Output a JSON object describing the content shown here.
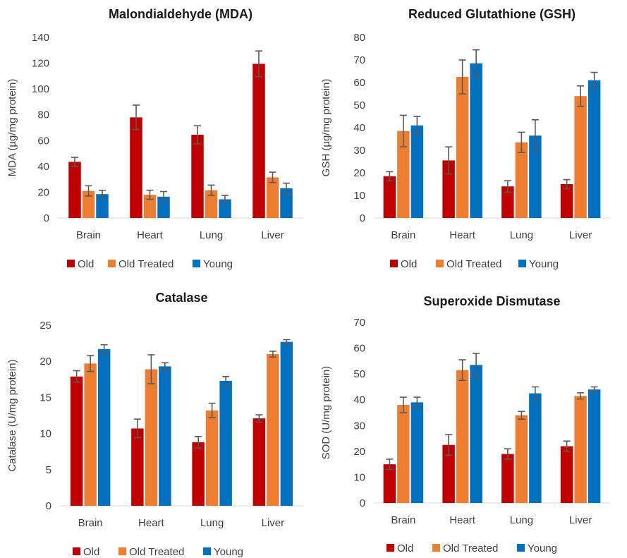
{
  "chart_data": [
    {
      "type": "bar",
      "title": "Malondialdehyde (MDA)",
      "ylabel": "MDA (µg/mg protein)",
      "ylim": [
        0,
        140
      ],
      "yticks": [
        0,
        20,
        40,
        60,
        80,
        100,
        120,
        140
      ],
      "grid": false,
      "legend_position": "bottom",
      "error_bars": true,
      "categories": [
        "Brain",
        "Heart",
        "Lung",
        "Liver"
      ],
      "series": [
        {
          "name": "Old",
          "color": "#C00000",
          "values": [
            43.5,
            78,
            64.5,
            119.5
          ],
          "errors": [
            3.5,
            9.5,
            7,
            10
          ]
        },
        {
          "name": "Old Treated",
          "color": "#ED7D31",
          "values": [
            21,
            18,
            21.5,
            31.5
          ],
          "errors": [
            4,
            3.5,
            4,
            4
          ]
        },
        {
          "name": "Young",
          "color": "#0070C0",
          "values": [
            18.5,
            16.5,
            14.5,
            23
          ],
          "errors": [
            3,
            4,
            3,
            4
          ]
        }
      ]
    },
    {
      "type": "bar",
      "title": "Reduced Glutathione (GSH)",
      "ylabel": "GSH (µg/mg protein)",
      "ylim": [
        0,
        80
      ],
      "yticks": [
        0,
        10,
        20,
        30,
        40,
        50,
        60,
        70,
        80
      ],
      "grid": false,
      "legend_position": "bottom",
      "error_bars": true,
      "categories": [
        "Brain",
        "Heart",
        "Lung",
        "Liver"
      ],
      "series": [
        {
          "name": "Old",
          "color": "#C00000",
          "values": [
            18.5,
            25.5,
            14,
            15
          ],
          "errors": [
            2,
            6,
            2.5,
            2
          ]
        },
        {
          "name": "Old Treated",
          "color": "#ED7D31",
          "values": [
            38.5,
            62.5,
            33.5,
            54
          ],
          "errors": [
            7,
            7.5,
            4.5,
            4.5
          ]
        },
        {
          "name": "Young",
          "color": "#0070C0",
          "values": [
            41,
            68.5,
            36.5,
            61
          ],
          "errors": [
            4,
            6,
            7,
            3.5
          ]
        }
      ]
    },
    {
      "type": "bar",
      "title": "Catalase",
      "ylabel": "Catalase (U/mg protein)",
      "ylim": [
        0,
        25
      ],
      "yticks": [
        0,
        5,
        10,
        15,
        20,
        25
      ],
      "grid": false,
      "legend_position": "bottom",
      "error_bars": true,
      "categories": [
        "Brain",
        "Heart",
        "Lung",
        "Liver"
      ],
      "series": [
        {
          "name": "Old",
          "color": "#C00000",
          "values": [
            17.9,
            10.7,
            8.8,
            12.1
          ],
          "errors": [
            0.8,
            1.3,
            0.8,
            0.5
          ]
        },
        {
          "name": "Old Treated",
          "color": "#ED7D31",
          "values": [
            19.7,
            18.9,
            13.2,
            21
          ],
          "errors": [
            1.1,
            2,
            1,
            0.4
          ]
        },
        {
          "name": "Young",
          "color": "#0070C0",
          "values": [
            21.7,
            19.3,
            17.3,
            22.7
          ],
          "errors": [
            0.6,
            0.5,
            0.6,
            0.3
          ]
        }
      ]
    },
    {
      "type": "bar",
      "title": "Superoxide Dismutase",
      "ylabel": "SOD (U/mg protein)",
      "ylim": [
        0,
        70
      ],
      "yticks": [
        0,
        10,
        20,
        30,
        40,
        50,
        60,
        70
      ],
      "grid": false,
      "legend_position": "bottom",
      "error_bars": true,
      "categories": [
        "Brain",
        "Heart",
        "Lung",
        "Liver"
      ],
      "series": [
        {
          "name": "Old",
          "color": "#C00000",
          "values": [
            15,
            22.5,
            19,
            22
          ],
          "errors": [
            2,
            4,
            2,
            2
          ]
        },
        {
          "name": "Old Treated",
          "color": "#ED7D31",
          "values": [
            38,
            51.5,
            34,
            41.5
          ],
          "errors": [
            3,
            4,
            1.5,
            1.2
          ]
        },
        {
          "name": "Young",
          "color": "#0070C0",
          "values": [
            39,
            53.5,
            42.5,
            44
          ],
          "errors": [
            2,
            4.5,
            2.5,
            1
          ]
        }
      ]
    }
  ]
}
